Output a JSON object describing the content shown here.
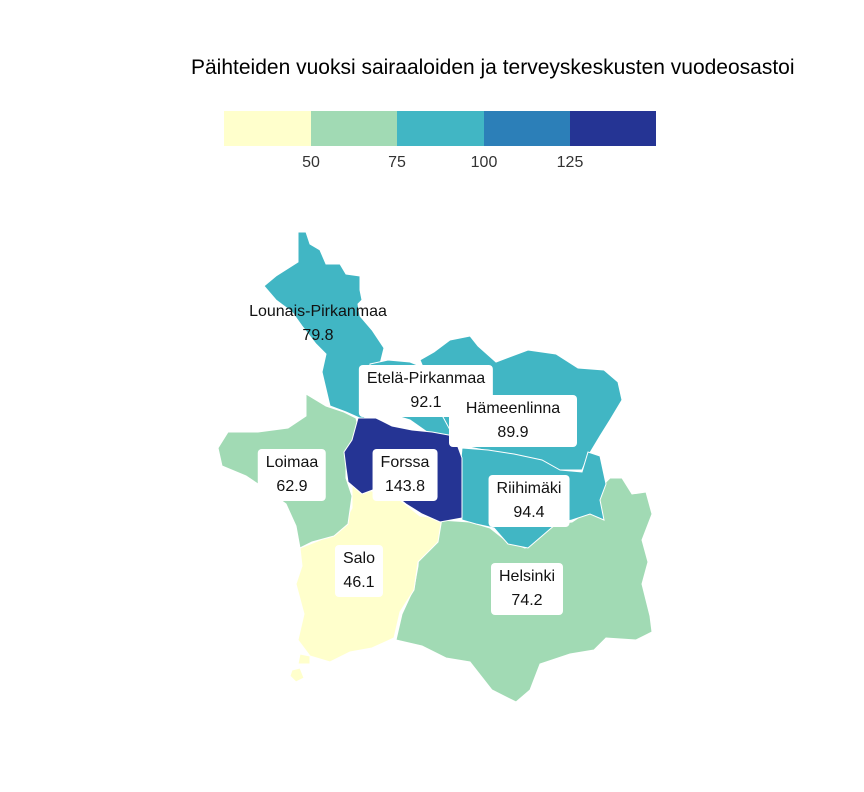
{
  "title": "Päihteiden vuoksi sairaaloiden ja terveyskeskusten vuodeosastoi",
  "legend": {
    "ticks": [
      "50",
      "75",
      "100",
      "125"
    ],
    "colors": [
      "#ffffcc",
      "#a1dab4",
      "#41b6c4",
      "#2c7fb8",
      "#253494"
    ]
  },
  "regions": [
    {
      "name": "Lounais-Pirkanmaa",
      "value": "79.8",
      "color": "#41b6c4"
    },
    {
      "name": "Etelä-Pirkanmaa",
      "value": "92.1",
      "color": "#41b6c4"
    },
    {
      "name": "Hämeenlinna",
      "value": "89.9",
      "color": "#41b6c4"
    },
    {
      "name": "Loimaa",
      "value": "62.9",
      "color": "#a1dab4"
    },
    {
      "name": "Forssa",
      "value": "143.8",
      "color": "#253494"
    },
    {
      "name": "Riihimäki",
      "value": "94.4",
      "color": "#41b6c4"
    },
    {
      "name": "Salo",
      "value": "46.1",
      "color": "#ffffcc"
    },
    {
      "name": "Helsinki",
      "value": "74.2",
      "color": "#a1dab4"
    }
  ]
}
